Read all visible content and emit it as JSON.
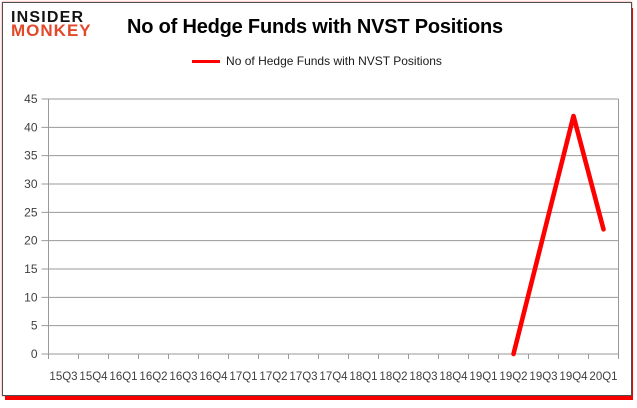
{
  "logo": {
    "line1": "INSIDER",
    "line2": "MONKEY"
  },
  "header": {
    "title": "No of Hedge Funds with NVST Positions"
  },
  "legend": {
    "label": "No of Hedge Funds with NVST Positions"
  },
  "chart_data": {
    "type": "line",
    "title": "No of Hedge Funds with NVST Positions",
    "categories": [
      "15Q3",
      "15Q4",
      "16Q1",
      "16Q2",
      "16Q3",
      "16Q4",
      "17Q1",
      "17Q2",
      "17Q3",
      "17Q4",
      "18Q1",
      "18Q2",
      "18Q3",
      "18Q4",
      "19Q1",
      "19Q2",
      "19Q3",
      "19Q4",
      "20Q1"
    ],
    "series": [
      {
        "name": "No of Hedge Funds with NVST Positions",
        "color": "#FF0000",
        "values": [
          null,
          null,
          null,
          null,
          null,
          null,
          null,
          null,
          null,
          null,
          null,
          null,
          null,
          null,
          null,
          0,
          21,
          42,
          22
        ]
      }
    ],
    "xlabel": "",
    "ylabel": "",
    "ylim": [
      0,
      45
    ],
    "ytick_step": 5,
    "grid": true,
    "legend_position": "top"
  },
  "colors": {
    "line": "#FF0000",
    "grid": "#999999",
    "axis_text": "#3f3f3f",
    "logo_red": "#e2492b",
    "frame_border": "#4f4f4f",
    "frame_shadow": "#f70000"
  }
}
